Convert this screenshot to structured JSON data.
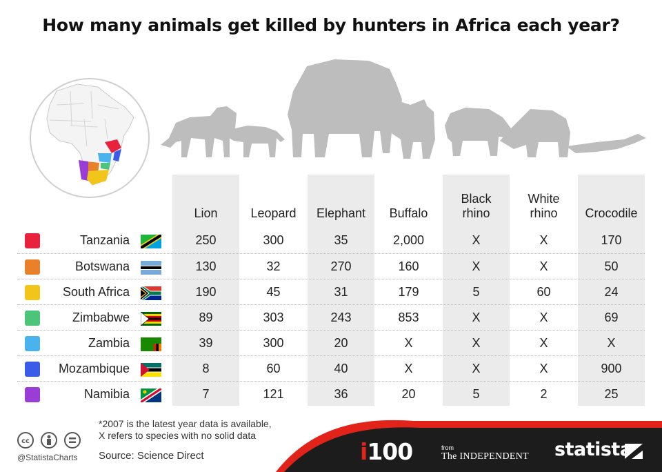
{
  "title": "How many animals get killed by hunters in Africa each year?",
  "chart_data": {
    "type": "table",
    "columns": [
      "Lion",
      "Leopard",
      "Elephant",
      "Buffalo",
      "Black\nrhino",
      "White\nrhino",
      "Crocodile"
    ],
    "rows": [
      {
        "country": "Tanzania",
        "color": "#e8213d",
        "flag": "tanzania-flag-icon",
        "values": [
          "250",
          "300",
          "35",
          "2,000",
          "X",
          "X",
          "170"
        ]
      },
      {
        "country": "Botswana",
        "color": "#e8812a",
        "flag": "botswana-flag-icon",
        "values": [
          "130",
          "32",
          "270",
          "160",
          "X",
          "X",
          "50"
        ]
      },
      {
        "country": "South Africa",
        "color": "#f2c51b",
        "flag": "south-africa-flag-icon",
        "values": [
          "190",
          "45",
          "31",
          "179",
          "5",
          "60",
          "24"
        ]
      },
      {
        "country": "Zimbabwe",
        "color": "#4cc47a",
        "flag": "zimbabwe-flag-icon",
        "values": [
          "89",
          "303",
          "243",
          "853",
          "X",
          "X",
          "69"
        ]
      },
      {
        "country": "Zambia",
        "color": "#4ab3ee",
        "flag": "zambia-flag-icon",
        "values": [
          "39",
          "300",
          "20",
          "X",
          "X",
          "X",
          "X"
        ]
      },
      {
        "country": "Mozambique",
        "color": "#3a5ce8",
        "flag": "mozambique-flag-icon",
        "values": [
          "8",
          "60",
          "40",
          "X",
          "X",
          "X",
          "900"
        ]
      },
      {
        "country": "Namibia",
        "color": "#9a3dd6",
        "flag": "namibia-flag-icon",
        "values": [
          "7",
          "121",
          "36",
          "20",
          "5",
          "2",
          "25"
        ]
      }
    ]
  },
  "footnote_line1": "*2007 is the latest year data is available,",
  "footnote_line2": "X refers to species with no solid data",
  "source": "Source: Science Direct",
  "handle": "@StatistaCharts",
  "brand": {
    "i100_i": "i",
    "i100_rest": "100",
    "from": "from",
    "independent": "The INDEPENDENT",
    "statista": "statista"
  },
  "colors": {
    "column_band": "#ebebeb",
    "footer": "#1c1c1c",
    "accent_red": "#e2231a",
    "silhouette": "#bdbdbd"
  }
}
